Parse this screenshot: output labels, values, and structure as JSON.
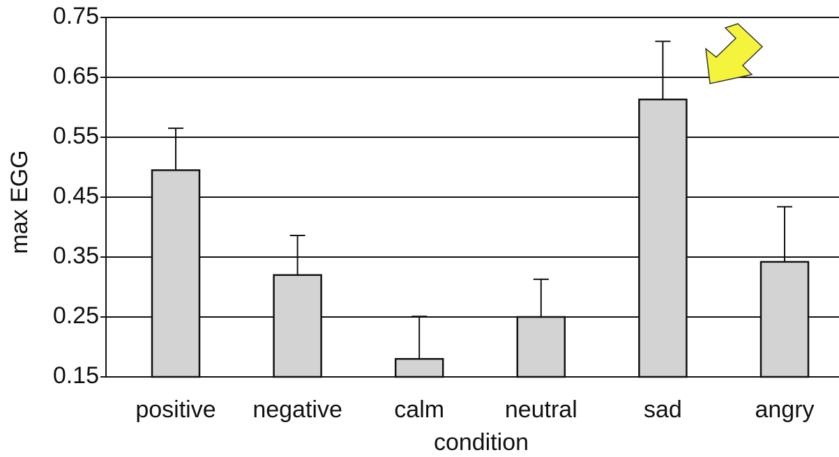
{
  "chart_data": {
    "type": "bar",
    "categories": [
      "positive",
      "negative",
      "calm",
      "neutral",
      "sad",
      "angry"
    ],
    "values": [
      0.495,
      0.32,
      0.18,
      0.25,
      0.613,
      0.342
    ],
    "errors": [
      0.07,
      0.066,
      0.071,
      0.063,
      0.097,
      0.092
    ],
    "color": "#d3d3d3",
    "ylim": [
      0.15,
      0.75
    ],
    "yticks": [
      0.15,
      0.25,
      0.35,
      0.45,
      0.55,
      0.65,
      0.75
    ],
    "grid": true,
    "xlabel": "condition",
    "ylabel": "max EGG"
  }
}
